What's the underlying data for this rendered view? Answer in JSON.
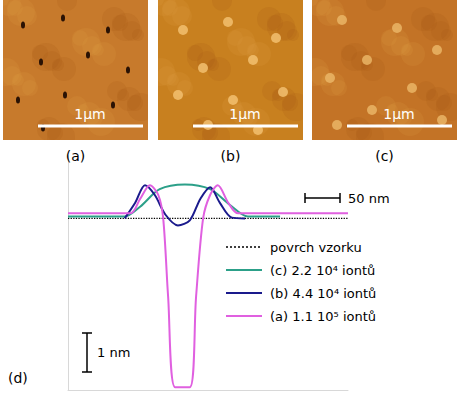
{
  "images": [
    {
      "label": "(a)",
      "scale_bar": "1µm"
    },
    {
      "label": "(b)",
      "scale_bar": "1µm"
    },
    {
      "label": "(c)",
      "scale_bar": "1µm"
    }
  ],
  "chart_data": {
    "type": "line",
    "label": "(d)",
    "xlim": [
      0,
      400
    ],
    "ylim": [
      -4.4,
      1.6
    ],
    "tick_labels": false,
    "grid": false,
    "scale_bars": [
      {
        "label": "50 nm",
        "axis": "x",
        "length": 50
      },
      {
        "label": "1 nm",
        "axis": "y",
        "length": 1
      }
    ],
    "series": [
      {
        "name": "povrch vzorku",
        "color": "#000000",
        "line_style": "dotted",
        "x": [
          0,
          400
        ],
        "values": [
          0,
          0
        ]
      },
      {
        "name": "(c) 2.2 10⁴ iontů",
        "color": "#2ca089",
        "line_style": "solid",
        "x": [
          0,
          81,
          103,
          131,
          167,
          203,
          231,
          257,
          303
        ],
        "values": [
          0.05,
          0.05,
          0.3,
          0.75,
          0.87,
          0.75,
          0.35,
          0.05,
          0.05
        ]
      },
      {
        "name": "(b) 4.4 10⁴ iontů",
        "color": "#1a1a8c",
        "line_style": "solid",
        "x": [
          81,
          96,
          110,
          124,
          139,
          157,
          174,
          189,
          203,
          217,
          234,
          253
        ],
        "values": [
          0,
          0.4,
          0.85,
          0.6,
          0.1,
          -0.18,
          -0.05,
          0.5,
          0.8,
          0.4,
          0.02,
          0
        ]
      },
      {
        "name": "(a) 1.1 10⁵ iontů",
        "color": "#e060e0",
        "line_style": "solid",
        "x": [
          0,
          89,
          103,
          117,
          129,
          136,
          143,
          153,
          174,
          183,
          193,
          203,
          214,
          229,
          243,
          400
        ],
        "values": [
          0.13,
          0.13,
          0.5,
          0.85,
          0.6,
          0,
          -2,
          -4.33,
          -4.33,
          -2,
          0,
          0.6,
          0.85,
          0.4,
          0.13,
          0.13
        ]
      }
    ]
  }
}
